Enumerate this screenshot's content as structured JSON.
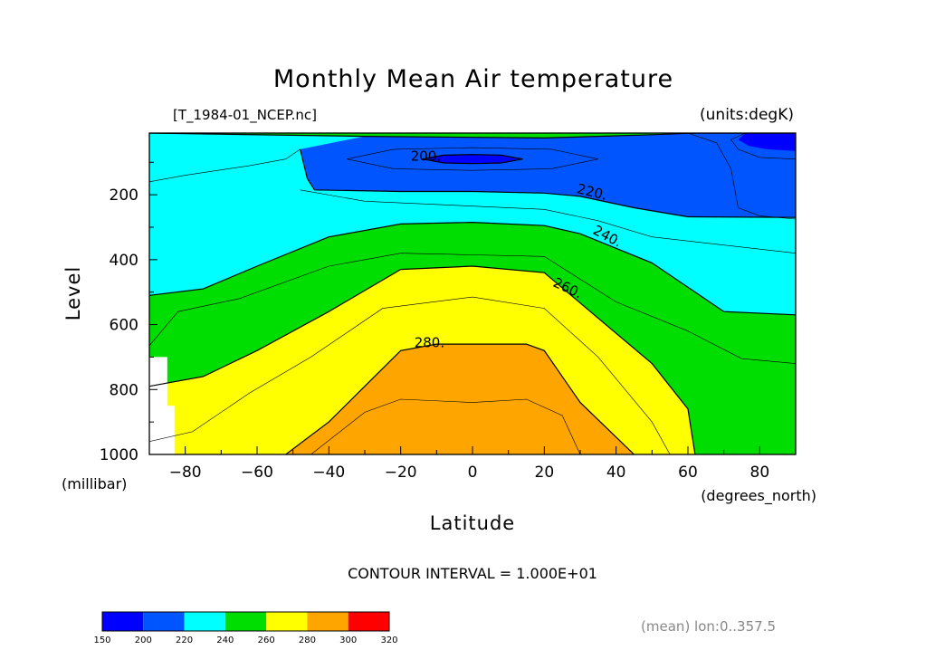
{
  "chart_data": {
    "type": "filled-contour",
    "title": "Monthly Mean Air temperature",
    "dataset_label": "[T_1984-01_NCEP.nc]",
    "units_label": "(units:degK)",
    "xlabel": "Latitude",
    "x_units": "(degrees_north)",
    "ylabel": "Level",
    "y_units": "(millibar)",
    "xlim": [
      -90,
      90
    ],
    "ylim": [
      1000,
      10
    ],
    "y_reversed": true,
    "x_ticks": [
      "-80",
      "-60",
      "-40",
      "-20",
      "0",
      "20",
      "40",
      "60",
      "80"
    ],
    "x_tick_values": [
      -80,
      -60,
      -40,
      -20,
      0,
      20,
      40,
      60,
      80
    ],
    "y_ticks": [
      "200",
      "400",
      "600",
      "800",
      "1000"
    ],
    "y_tick_values": [
      200,
      400,
      600,
      800,
      1000
    ],
    "contour_interval_text": "CONTOUR INTERVAL = 1.000E+01",
    "averaging_note": "(mean) lon:0..357.5",
    "contour_labels": [
      "220.",
      "200.",
      "220.",
      "240.",
      "260.",
      "280."
    ],
    "bands": [
      {
        "min": 150,
        "max": 200,
        "color": "#0000ff"
      },
      {
        "min": 200,
        "max": 220,
        "color": "#0055ff"
      },
      {
        "min": 220,
        "max": 240,
        "color": "#00ffff"
      },
      {
        "min": 240,
        "max": 260,
        "color": "#00dd00"
      },
      {
        "min": 260,
        "max": 280,
        "color": "#ffff00"
      },
      {
        "min": 280,
        "max": 300,
        "color": "#ffa500"
      },
      {
        "min": 300,
        "max": 320,
        "color": "#ff0000"
      }
    ],
    "colorbar_labels": [
      "150",
      "200",
      "220",
      "240",
      "260",
      "280",
      "300",
      "320"
    ],
    "contours": {
      "c200": [
        [
          -14,
          90
        ],
        [
          -8,
          78
        ],
        [
          0,
          76
        ],
        [
          8,
          78
        ],
        [
          14,
          90
        ],
        [
          8,
          102
        ],
        [
          0,
          104
        ],
        [
          -8,
          102
        ],
        [
          -14,
          90
        ]
      ],
      "c210": [
        [
          -35,
          90
        ],
        [
          -22,
          60
        ],
        [
          0,
          55
        ],
        [
          22,
          60
        ],
        [
          35,
          90
        ],
        [
          22,
          120
        ],
        [
          0,
          125
        ],
        [
          -22,
          120
        ],
        [
          -35,
          90
        ]
      ],
      "c220": [
        [
          -90,
          10
        ],
        [
          -30,
          20
        ],
        [
          20,
          25
        ],
        [
          50,
          15
        ],
        [
          62,
          10
        ]
      ],
      "c220b": [
        [
          -48,
          60
        ],
        [
          -46,
          150
        ],
        [
          -44,
          185
        ],
        [
          -20,
          190
        ],
        [
          0,
          190
        ],
        [
          20,
          195
        ],
        [
          30,
          205
        ],
        [
          45,
          240
        ],
        [
          60,
          268
        ],
        [
          90,
          270
        ]
      ],
      "c220c": [
        [
          60,
          10
        ],
        [
          90,
          10
        ]
      ],
      "c220d": [
        [
          76,
          10
        ],
        [
          72,
          30
        ],
        [
          74,
          60
        ],
        [
          80,
          85
        ],
        [
          90,
          90
        ]
      ],
      "c230": [
        [
          -90,
          160
        ],
        [
          -80,
          140
        ],
        [
          -62,
          110
        ],
        [
          -52,
          90
        ],
        [
          -48,
          60
        ]
      ],
      "c230b": [
        [
          -48,
          185
        ],
        [
          -30,
          220
        ],
        [
          0,
          235
        ],
        [
          20,
          245
        ],
        [
          35,
          280
        ],
        [
          50,
          330
        ],
        [
          90,
          380
        ]
      ],
      "c230c": [
        [
          60,
          10
        ],
        [
          68,
          40
        ],
        [
          72,
          120
        ],
        [
          74,
          240
        ],
        [
          80,
          265
        ],
        [
          90,
          275
        ]
      ],
      "c240": [
        [
          -90,
          510
        ],
        [
          -75,
          490
        ],
        [
          -60,
          420
        ],
        [
          -40,
          330
        ],
        [
          -20,
          290
        ],
        [
          0,
          285
        ],
        [
          20,
          295
        ],
        [
          30,
          320
        ],
        [
          50,
          410
        ],
        [
          70,
          560
        ],
        [
          90,
          570
        ]
      ],
      "c250": [
        [
          -90,
          665
        ],
        [
          -82,
          560
        ],
        [
          -65,
          520
        ],
        [
          -40,
          420
        ],
        [
          -20,
          380
        ],
        [
          0,
          385
        ],
        [
          20,
          390
        ],
        [
          40,
          530
        ],
        [
          60,
          620
        ],
        [
          75,
          705
        ],
        [
          90,
          720
        ]
      ],
      "c260": [
        [
          -90,
          790
        ],
        [
          -75,
          760
        ],
        [
          -60,
          680
        ],
        [
          -40,
          560
        ],
        [
          -20,
          430
        ],
        [
          0,
          420
        ],
        [
          20,
          440
        ],
        [
          35,
          580
        ],
        [
          50,
          720
        ],
        [
          60,
          860
        ],
        [
          62,
          1000
        ]
      ],
      "c270": [
        [
          -90,
          960
        ],
        [
          -78,
          930
        ],
        [
          -62,
          810
        ],
        [
          -45,
          700
        ],
        [
          -25,
          550
        ],
        [
          0,
          515
        ],
        [
          20,
          550
        ],
        [
          35,
          700
        ],
        [
          50,
          900
        ],
        [
          55,
          1000
        ]
      ],
      "c280": [
        [
          -52,
          1000
        ],
        [
          -40,
          900
        ],
        [
          -30,
          790
        ],
        [
          -20,
          680
        ],
        [
          -10,
          660
        ],
        [
          0,
          660
        ],
        [
          15,
          660
        ],
        [
          20,
          680
        ],
        [
          30,
          840
        ],
        [
          45,
          1000
        ]
      ],
      "c290": [
        [
          -45,
          1000
        ],
        [
          -30,
          870
        ],
        [
          -20,
          830
        ],
        [
          0,
          840
        ],
        [
          15,
          830
        ],
        [
          25,
          880
        ],
        [
          30,
          1000
        ]
      ]
    }
  }
}
